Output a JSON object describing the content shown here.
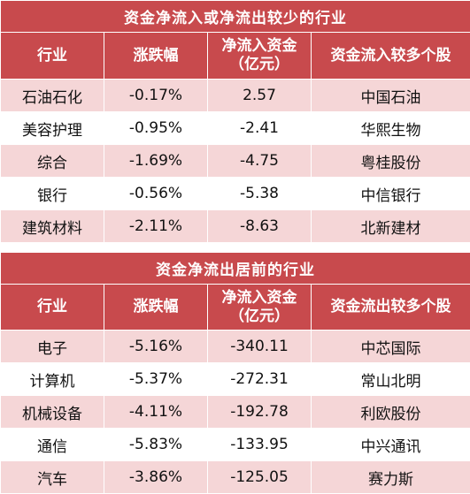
{
  "section1": {
    "title": "资金净流入或净流出较少的行业",
    "headers": [
      "行业",
      "涨跌幅",
      "净流入资金",
      "（亿元）",
      "资金流入较多个股"
    ],
    "rows": [
      [
        "石油石化",
        "-0.17%",
        "2.57",
        "中国石油"
      ],
      [
        "美容护理",
        "-0.95%",
        "-2.41",
        "华熙生物"
      ],
      [
        "综合",
        "-1.69%",
        "-4.75",
        "粤桂股份"
      ],
      [
        "银行",
        "-0.56%",
        "-5.38",
        "中信银行"
      ],
      [
        "建筑材料",
        "-2.11%",
        "-8.63",
        "北新建材"
      ]
    ]
  },
  "section2": {
    "title": "资金净流出居前的行业",
    "headers": [
      "行业",
      "涨跌幅",
      "净流入资金",
      "（亿元）",
      "资金流出较多个股"
    ],
    "rows": [
      [
        "电子",
        "-5.16%",
        "-340.11",
        "中芯国际"
      ],
      [
        "计算机",
        "-5.37%",
        "-272.31",
        "常山北明"
      ],
      [
        "机械设备",
        "-4.11%",
        "-192.78",
        "利欧股份"
      ],
      [
        "通信",
        "-5.83%",
        "-133.95",
        "中兴通讯"
      ],
      [
        "汽车",
        "-3.86%",
        "-125.05",
        "赛力斯"
      ]
    ]
  },
  "colors": {
    "header_bg": "#c84a4d",
    "stripe_bg": "#f5d6d7",
    "white": "#ffffff"
  }
}
